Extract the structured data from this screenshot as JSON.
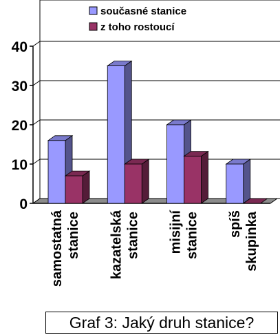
{
  "chart_data": {
    "type": "bar",
    "categories": [
      "samostatná stanice",
      "kazatelská stanice",
      "misijní stanice",
      "spíš skupinka"
    ],
    "category_lines": [
      [
        "samostatná",
        "stanice"
      ],
      [
        "kazatelská",
        "stanice"
      ],
      [
        "misijní",
        "stanice"
      ],
      [
        "spíš",
        "skupinka"
      ]
    ],
    "series": [
      {
        "name": "současné stanice",
        "values": [
          16,
          35,
          20,
          10
        ],
        "color": "#9999ff"
      },
      {
        "name": "z toho rostoucí",
        "values": [
          7,
          10,
          12,
          0
        ],
        "color": "#993366"
      }
    ],
    "yticks": [
      0,
      10,
      20,
      30,
      40
    ],
    "ylim": [
      0,
      40
    ],
    "legend_position": "top-right",
    "grid": true
  },
  "caption": "Graf 3:  Jaký druh stanice?"
}
